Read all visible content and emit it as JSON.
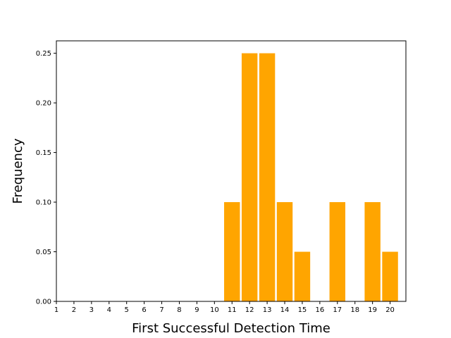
{
  "chart_data": {
    "type": "bar",
    "title": "",
    "xlabel": "First Successful Detection Time",
    "ylabel": "Frequency",
    "x_ticks": [
      "1",
      "2",
      "3",
      "4",
      "5",
      "6",
      "7",
      "8",
      "9",
      "10",
      "11",
      "12",
      "13",
      "14",
      "15",
      "16",
      "17",
      "18",
      "19",
      "20"
    ],
    "y_ticks": [
      "0.00",
      "0.05",
      "0.10",
      "0.15",
      "0.20",
      "0.25"
    ],
    "xlim": [
      1,
      20.9
    ],
    "ylim": [
      0,
      0.2625
    ],
    "bar_color": "#ffa500",
    "grid": false,
    "bars": [
      {
        "x": 11,
        "value": 0.1
      },
      {
        "x": 12,
        "value": 0.25
      },
      {
        "x": 13,
        "value": 0.25
      },
      {
        "x": 14,
        "value": 0.1
      },
      {
        "x": 15,
        "value": 0.05
      },
      {
        "x": 17,
        "value": 0.1
      },
      {
        "x": 19,
        "value": 0.1
      },
      {
        "x": 20,
        "value": 0.05
      }
    ]
  }
}
